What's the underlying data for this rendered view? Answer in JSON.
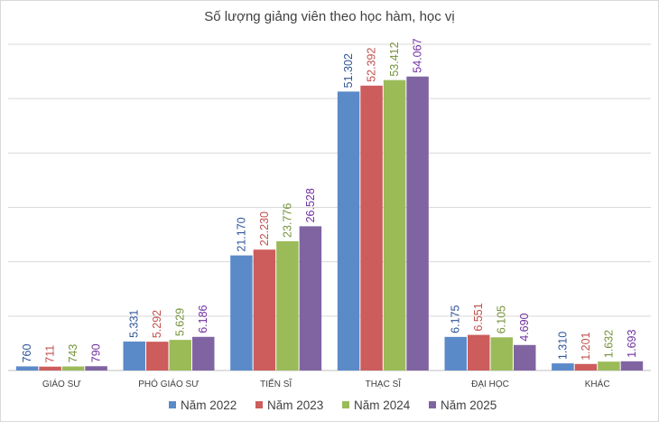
{
  "chart_data": {
    "type": "bar",
    "title": "Số lượng giảng viên theo học hàm, học vị",
    "categories": [
      "GIÁO SƯ",
      "PHÓ GIÁO SƯ",
      "TIẾN SĨ",
      "THẠC SĨ",
      "ĐẠI HỌC",
      "KHÁC"
    ],
    "series": [
      {
        "name": "Năm 2022",
        "color": "#5B8AC9",
        "label_color": "#2F5597",
        "values": [
          760,
          5331,
          21170,
          51302,
          6175,
          1310
        ],
        "labels": [
          "760",
          "5.331",
          "21.170",
          "51.302",
          "6.175",
          "1.310"
        ]
      },
      {
        "name": "Năm 2023",
        "color": "#CD5C5C",
        "label_color": "#C0504D",
        "values": [
          711,
          5292,
          22230,
          52392,
          6551,
          1201
        ],
        "labels": [
          "711",
          "5.292",
          "22.230",
          "52.392",
          "6.551",
          "1.201"
        ]
      },
      {
        "name": "Năm 2024",
        "color": "#9BBB59",
        "label_color": "#76933C",
        "values": [
          743,
          5629,
          23776,
          53412,
          6105,
          1632
        ],
        "labels": [
          "743",
          "5.629",
          "23.776",
          "53.412",
          "6.105",
          "1.632"
        ]
      },
      {
        "name": "Năm 2025",
        "color": "#8064A2",
        "label_color": "#7030A0",
        "values": [
          790,
          6186,
          26528,
          54067,
          4690,
          1693
        ],
        "labels": [
          "790",
          "6.186",
          "26.528",
          "54.067",
          "4.690",
          "1.693"
        ]
      }
    ],
    "ylim": [
      0,
      60000
    ],
    "y_gridlines": [
      0,
      10000,
      20000,
      30000,
      40000,
      50000,
      60000
    ],
    "grid": true,
    "legend_position": "bottom"
  }
}
